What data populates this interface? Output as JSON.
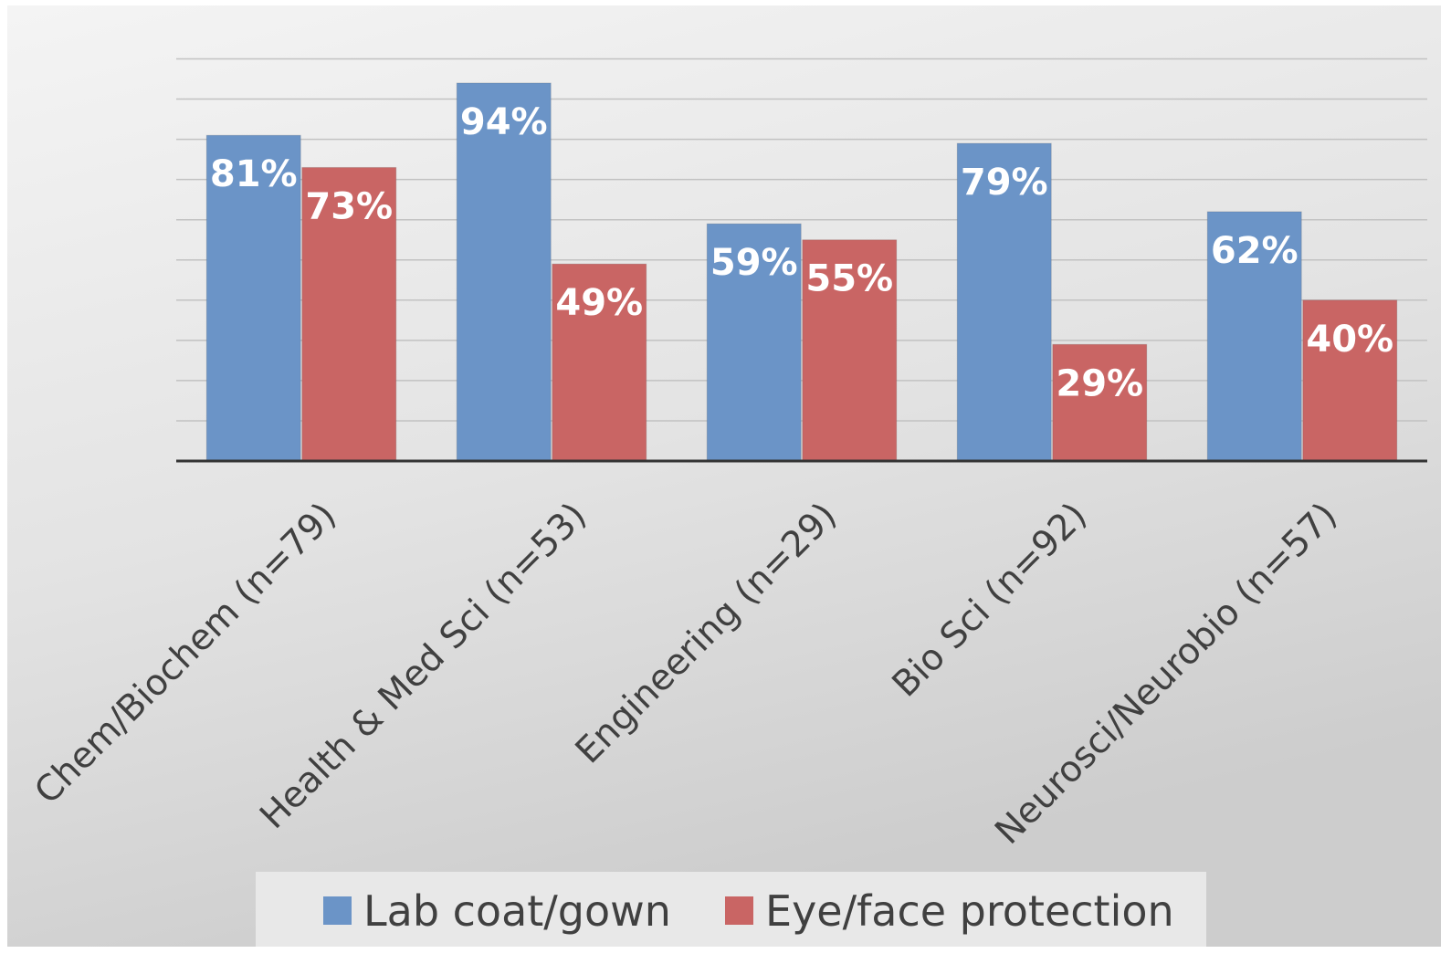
{
  "chart_data": {
    "type": "bar",
    "categories": [
      "Chem/Biochem (n=79)",
      "Health & Med Sci (n=53)",
      "Engineering (n=29)",
      "Bio Sci (n=92)",
      "Neurosci/Neurobio (n=57)"
    ],
    "series": [
      {
        "name": "Lab coat/gown",
        "values": [
          81,
          94,
          59,
          79,
          62
        ],
        "labels": [
          "81%",
          "94%",
          "59%",
          "79%",
          "62%"
        ],
        "color": "#6b94c7"
      },
      {
        "name": "Eye/face protection",
        "values": [
          73,
          49,
          55,
          29,
          40
        ],
        "labels": [
          "73%",
          "49%",
          "55%",
          "29%",
          "40%"
        ],
        "color": "#c96564"
      }
    ],
    "ylim": [
      0,
      106.7
    ],
    "gridlines": true,
    "legend_position": "bottom",
    "title": "",
    "xlabel": "",
    "ylabel": ""
  }
}
